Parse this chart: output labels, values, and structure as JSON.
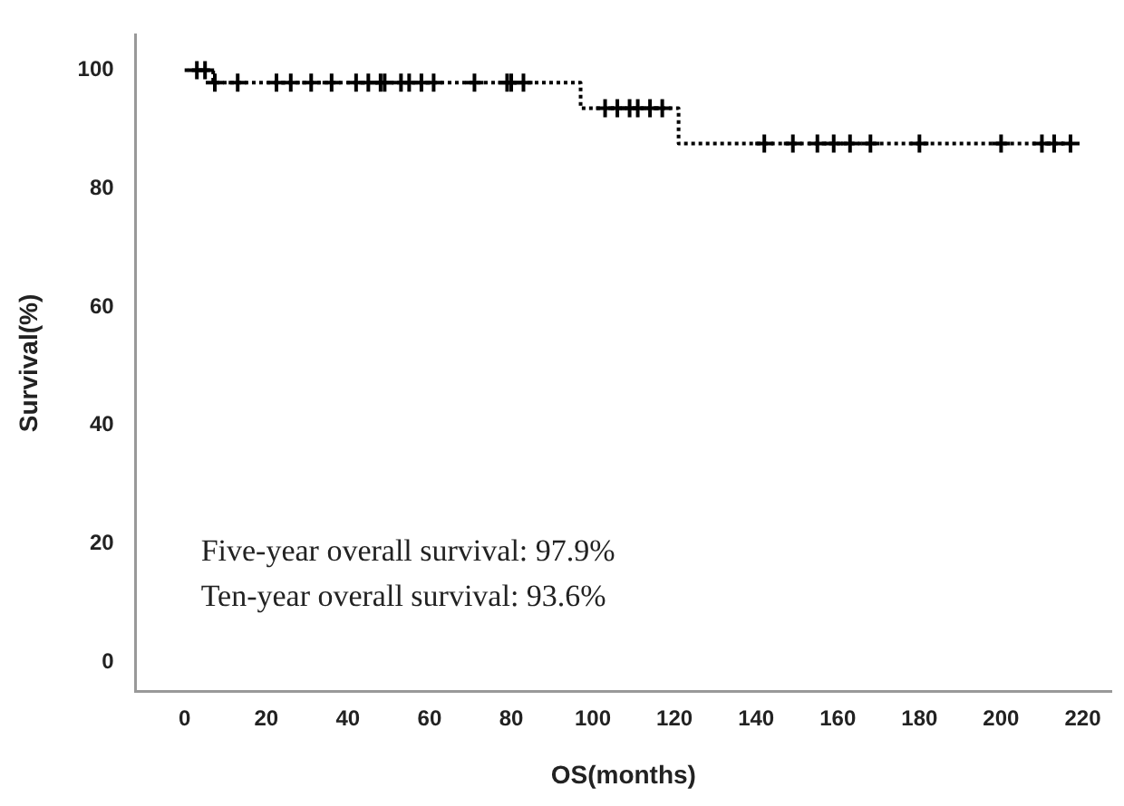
{
  "chart_data": {
    "type": "step",
    "xlabel": "OS(months)",
    "ylabel": "Survival(%)",
    "series": [
      {
        "color": "#000000",
        "line_style": "dotted",
        "marker": "none",
        "x": [
          0,
          7,
          97,
          121,
          217
        ],
        "values": [
          100,
          97.9,
          93.6,
          87.6,
          87.6
        ]
      },
      {
        "type": "scatter",
        "color": "#000000",
        "marker": "cross",
        "x": [
          3,
          5,
          7.4,
          13,
          22.5,
          26,
          31,
          36,
          42,
          45,
          48,
          49,
          53,
          55,
          58,
          61,
          71,
          79,
          80,
          83,
          103,
          106,
          109,
          111,
          114,
          117,
          142,
          149,
          155,
          159,
          163,
          168,
          180,
          200,
          210,
          213,
          217
        ],
        "values": [
          100,
          100,
          97.9,
          97.9,
          97.9,
          97.9,
          97.9,
          97.9,
          97.9,
          97.9,
          97.9,
          97.9,
          97.9,
          97.9,
          97.9,
          97.9,
          97.9,
          97.9,
          97.9,
          97.9,
          93.6,
          93.6,
          93.6,
          93.6,
          93.6,
          93.6,
          87.6,
          87.6,
          87.6,
          87.6,
          87.6,
          87.6,
          87.6,
          87.6,
          87.6,
          87.6,
          87.6
        ]
      }
    ],
    "xlim": [
      -12,
      227
    ],
    "xticks": [
      0,
      20,
      40,
      60,
      80,
      100,
      120,
      140,
      160,
      180,
      200,
      220
    ],
    "ylim": [
      -5,
      106
    ],
    "yticks": [
      0,
      20,
      40,
      60,
      80,
      100
    ],
    "grid": false,
    "legend": false,
    "annotations": [
      "Five-year overall survival: 97.9%",
      "Ten-year overall survival: 93.6%"
    ]
  }
}
